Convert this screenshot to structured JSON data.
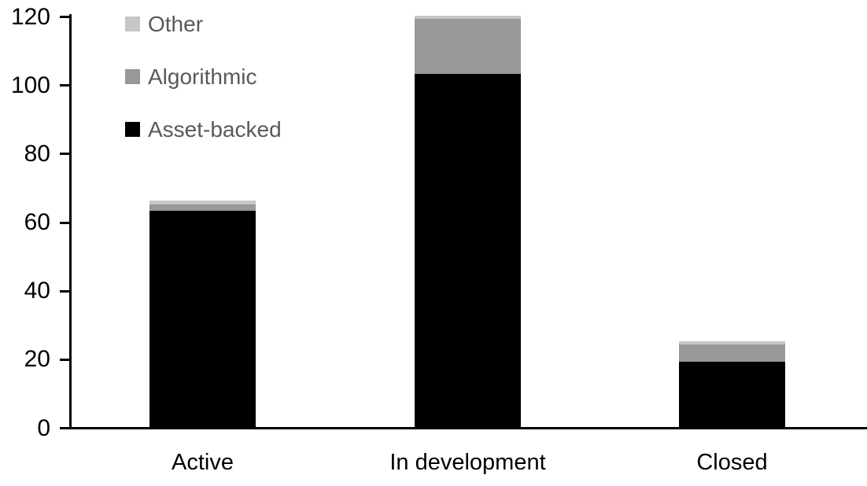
{
  "chart_data": {
    "type": "bar",
    "stacked": true,
    "title": "",
    "xlabel": "",
    "ylabel": "",
    "categories": [
      "Active",
      "In development",
      "Closed"
    ],
    "series": [
      {
        "name": "Other",
        "color": "#c6c6c6",
        "values": [
          1,
          1,
          1
        ]
      },
      {
        "name": "Algorithmic",
        "color": "#989898",
        "values": [
          2,
          16,
          5
        ]
      },
      {
        "name": "Asset-backed",
        "color": "#000000",
        "values": [
          63,
          103,
          19
        ]
      }
    ],
    "series_order": "top-to-bottom of stack (legend order)",
    "totals": [
      66,
      120,
      25
    ],
    "y_ticks": [
      120,
      100,
      80,
      60,
      40,
      20,
      0
    ],
    "ylim": [
      0,
      120
    ],
    "grid": false,
    "legend_position": "upper-left inside plot area",
    "legend_text_color": "#595959",
    "axis_color": "#000000",
    "background_color": "#ffffff"
  }
}
